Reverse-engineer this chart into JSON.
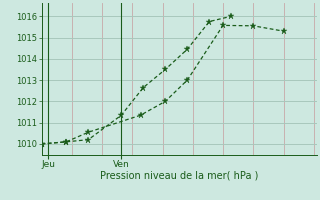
{
  "xlabel": "Pression niveau de la mer( hPa )",
  "background_color": "#cde8e0",
  "grid_color": "#a8c8bc",
  "line_color": "#1a5c1a",
  "ylim": [
    1009.5,
    1016.6
  ],
  "yticks": [
    1010,
    1011,
    1012,
    1013,
    1014,
    1015,
    1016
  ],
  "xlim": [
    0,
    10
  ],
  "series1_x": [
    0.0,
    0.9,
    1.7,
    2.9,
    3.7,
    4.5,
    5.3,
    6.1,
    6.9
  ],
  "series1_y": [
    1010.0,
    1010.1,
    1010.2,
    1011.35,
    1012.65,
    1013.5,
    1014.45,
    1015.75,
    1016.0
  ],
  "series2_x": [
    0.0,
    0.9,
    1.7,
    3.6,
    4.5,
    5.3,
    6.6,
    7.7,
    8.8
  ],
  "series2_y": [
    1010.0,
    1010.1,
    1010.55,
    1011.35,
    1012.0,
    1013.0,
    1015.57,
    1015.55,
    1015.3
  ],
  "xtick_positions": [
    0.25,
    2.9
  ],
  "xtick_labels": [
    "Jeu",
    "Ven"
  ],
  "vline_x": [
    0.25,
    2.9
  ],
  "num_vert_gridlines": 10,
  "vert_grid_positions": [
    0.0,
    1.1,
    2.2,
    3.3,
    4.4,
    5.5,
    6.6,
    7.7,
    8.8,
    9.9
  ],
  "vert_grid_color": "#c8a8a8"
}
